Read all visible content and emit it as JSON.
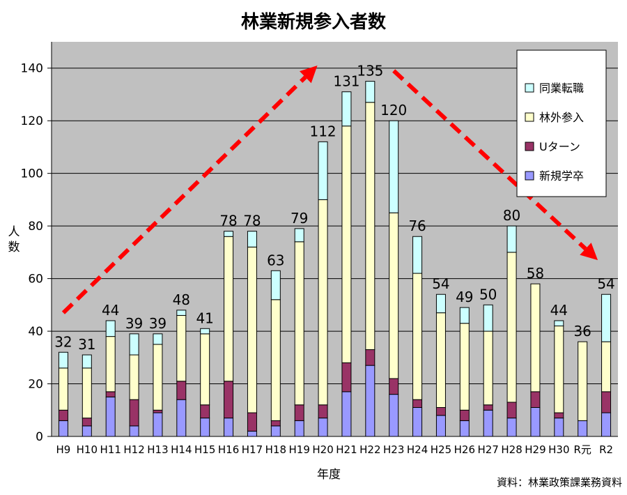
{
  "chart_data": {
    "type": "bar",
    "stacked": true,
    "title": "林業新規参入者数",
    "xlabel": "年度",
    "ylabel": "人数",
    "source": "資料：林業政策課業務資料",
    "ylim": [
      0,
      150
    ],
    "yticks": [
      0,
      20,
      40,
      60,
      80,
      100,
      120,
      140
    ],
    "grid": true,
    "legend_position": "top-right",
    "categories": [
      "H9",
      "H10",
      "H11",
      "H12",
      "H13",
      "H14",
      "H15",
      "H16",
      "H17",
      "H18",
      "H19",
      "H20",
      "H21",
      "H22",
      "H23",
      "H24",
      "H25",
      "H26",
      "H27",
      "H28",
      "H29",
      "H30",
      "R元",
      "R2"
    ],
    "series": [
      {
        "name": "新規学卒",
        "color": "#9999ff",
        "values": [
          6,
          4,
          15,
          4,
          9,
          14,
          7,
          7,
          2,
          4,
          6,
          7,
          17,
          27,
          16,
          11,
          8,
          6,
          10,
          7,
          11,
          7,
          6,
          9
        ]
      },
      {
        "name": "Uターン",
        "color": "#993366",
        "values": [
          4,
          3,
          2,
          10,
          1,
          7,
          5,
          14,
          7,
          2,
          6,
          5,
          11,
          6,
          6,
          3,
          3,
          4,
          2,
          6,
          6,
          2,
          0,
          8
        ]
      },
      {
        "name": "林外参入",
        "color": "#ffffcc",
        "values": [
          16,
          19,
          21,
          17,
          25,
          25,
          27,
          55,
          63,
          46,
          62,
          78,
          90,
          94,
          63,
          48,
          36,
          33,
          28,
          57,
          41,
          33,
          30,
          19
        ]
      },
      {
        "name": "同業転職",
        "color": "#ccffff",
        "values": [
          6,
          5,
          6,
          8,
          4,
          2,
          2,
          2,
          6,
          11,
          5,
          22,
          13,
          8,
          35,
          14,
          7,
          6,
          10,
          10,
          0,
          2,
          0,
          18
        ]
      }
    ],
    "totals": [
      32,
      31,
      44,
      39,
      39,
      48,
      41,
      78,
      78,
      63,
      79,
      112,
      131,
      135,
      120,
      76,
      54,
      49,
      50,
      80,
      58,
      44,
      36,
      54
    ],
    "arrows": [
      {
        "from": "H9",
        "to": "H20",
        "direction": "up"
      },
      {
        "from": "H23",
        "to": "R2",
        "direction": "down"
      }
    ],
    "arrow_color": "#ff0000"
  }
}
